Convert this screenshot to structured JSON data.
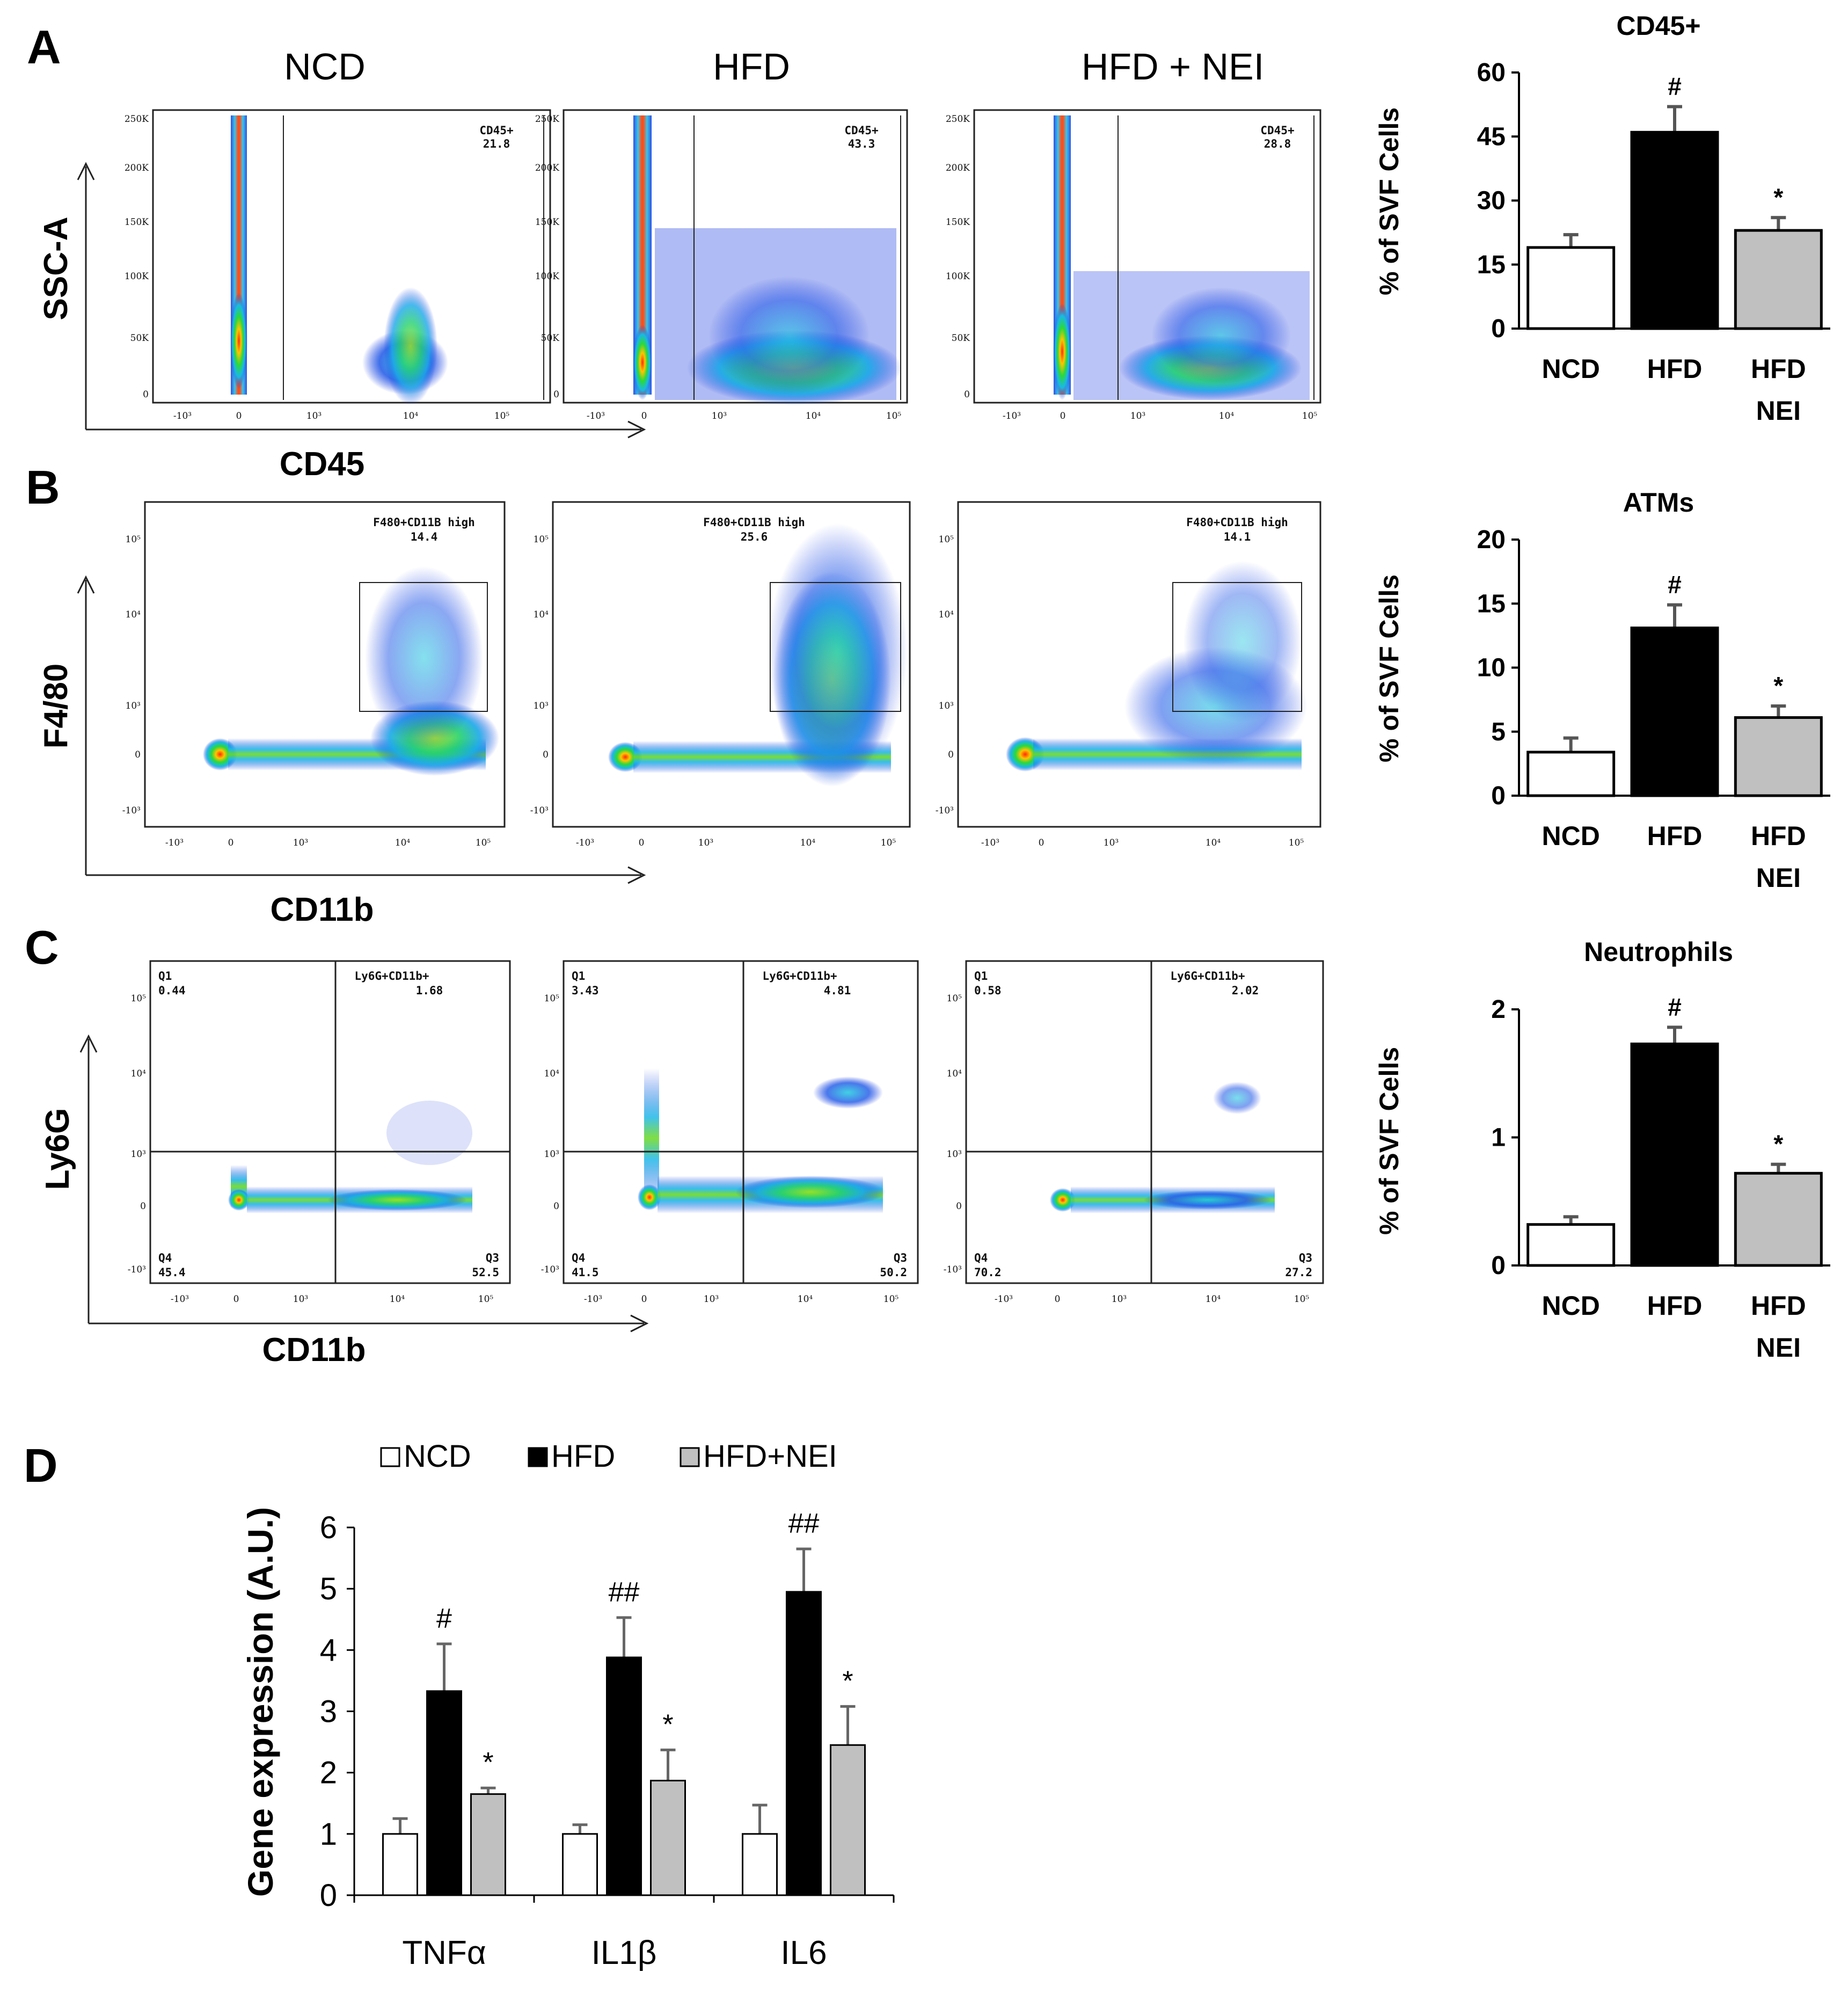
{
  "panels": {
    "A": {
      "letter": "A",
      "conditions": [
        "NCD",
        "HFD",
        "HFD + NEI"
      ],
      "x_axis_label": "CD45",
      "y_axis_label": "SSC-A",
      "y_ticks": [
        "250K",
        "200K",
        "150K",
        "100K",
        "50K",
        "0"
      ],
      "x_ticks": [
        "-10³",
        "0",
        "10³",
        "10⁴",
        "10⁵"
      ],
      "gate_name": "CD45+",
      "gate_values": [
        "21.8",
        "43.3",
        "28.8"
      ]
    },
    "B": {
      "letter": "B",
      "x_axis_label": "CD11b",
      "y_axis_label": "F4/80",
      "y_ticks": [
        "10⁵",
        "10⁴",
        "10³",
        "0",
        "-10³"
      ],
      "x_ticks": [
        "-10³",
        "0",
        "10³",
        "10⁴",
        "10⁵"
      ],
      "gate_name": "F480+CD11B high",
      "gate_values": [
        "14.4",
        "25.6",
        "14.1"
      ]
    },
    "C": {
      "letter": "C",
      "x_axis_label": "CD11b",
      "y_axis_label": "Ly6G",
      "y_ticks": [
        "10⁵",
        "10⁴",
        "10³",
        "0",
        "-10³"
      ],
      "x_ticks": [
        "-10³",
        "0",
        "10³",
        "10⁴",
        "10⁵"
      ],
      "gate_name": "Ly6G+CD11b+",
      "q1_label": "Q1",
      "q3_label": "Q3",
      "q4_label": "Q4",
      "q1_values": [
        "0.44",
        "3.43",
        "0.58"
      ],
      "q2_values": [
        "1.68",
        "4.81",
        "2.02"
      ],
      "q3_values": [
        "52.5",
        "50.2",
        "27.2"
      ],
      "q4_values": [
        "45.4",
        "41.5",
        "70.2"
      ]
    },
    "D": {
      "letter": "D"
    }
  },
  "colors": {
    "ncd": "#ffffff",
    "hfd": "#000000",
    "hfd_nei": "#c0c0c0",
    "error": "#666666"
  },
  "chart_data": [
    {
      "type": "bar",
      "title": "CD45+",
      "ylabel": "% of SVF Cells",
      "categories": [
        "NCD",
        "HFD",
        "HFD\nNEI"
      ],
      "values": [
        19,
        46,
        23
      ],
      "errors": [
        3,
        6,
        3
      ],
      "annotations": [
        "",
        "#",
        "*"
      ],
      "ylim": [
        0,
        60
      ],
      "yticks": [
        0,
        15,
        30,
        45,
        60
      ]
    },
    {
      "type": "bar",
      "title": "ATMs",
      "ylabel": "% of SVF Cells",
      "categories": [
        "NCD",
        "HFD",
        "HFD\nNEI"
      ],
      "values": [
        3.4,
        13.1,
        6.1
      ],
      "errors": [
        1.1,
        1.8,
        0.9
      ],
      "annotations": [
        "",
        "#",
        "*"
      ],
      "ylim": [
        0,
        20
      ],
      "yticks": [
        0,
        5,
        10,
        15,
        20
      ]
    },
    {
      "type": "bar",
      "title": "Neutrophils",
      "ylabel": "% of SVF Cells",
      "categories": [
        "NCD",
        "HFD",
        "HFD\nNEI"
      ],
      "values": [
        0.32,
        1.73,
        0.72
      ],
      "errors": [
        0.06,
        0.13,
        0.07
      ],
      "annotations": [
        "",
        "#",
        "*"
      ],
      "ylim": [
        0,
        2
      ],
      "yticks": [
        0,
        1,
        2
      ]
    },
    {
      "type": "bar",
      "title": "",
      "ylabel": "Gene expression (A.U.)",
      "categories": [
        "TNFα",
        "IL1β",
        "IL6"
      ],
      "legend": [
        "NCD",
        "HFD",
        "HFD+NEI"
      ],
      "series": [
        {
          "name": "NCD",
          "values": [
            1.0,
            1.0,
            1.0
          ],
          "errors": [
            0.25,
            0.15,
            0.47
          ]
        },
        {
          "name": "HFD",
          "values": [
            3.33,
            3.88,
            4.95
          ],
          "errors": [
            0.77,
            0.65,
            0.7
          ]
        },
        {
          "name": "HFD+NEI",
          "values": [
            1.65,
            1.87,
            2.45
          ],
          "errors": [
            0.1,
            0.5,
            0.63
          ]
        }
      ],
      "annotations": [
        [
          "",
          "#",
          "*"
        ],
        [
          "",
          "##",
          "*"
        ],
        [
          "",
          "##",
          "*"
        ]
      ],
      "ylim": [
        0,
        6
      ],
      "yticks": [
        0,
        1,
        2,
        3,
        4,
        5,
        6
      ]
    }
  ]
}
